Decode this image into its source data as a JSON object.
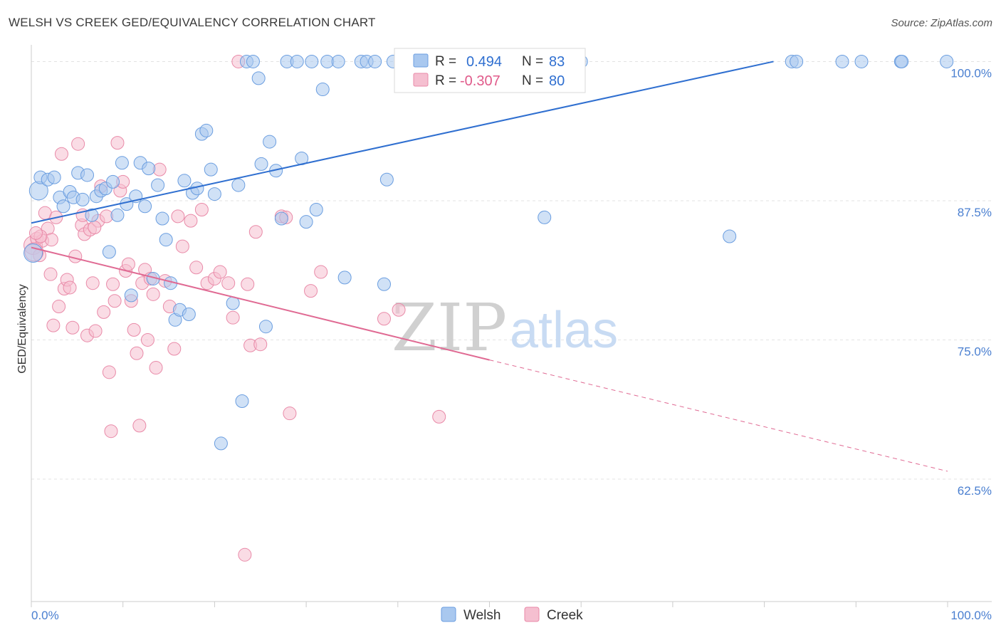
{
  "header": {
    "title": "WELSH VS CREEK GED/EQUIVALENCY CORRELATION CHART",
    "source": "Source: ZipAtlas.com"
  },
  "legend": {
    "r_label": "R =",
    "n_label": "N =",
    "welsh": {
      "r": "0.494",
      "n": "83"
    },
    "creek": {
      "r": "-0.307",
      "n": "80"
    }
  },
  "bottom_legend": {
    "welsh": "Welsh",
    "creek": "Creek"
  },
  "watermark": {
    "zip": "ZIP",
    "atlas": "atlas"
  },
  "colors": {
    "welsh_fill": "#a9c8ef",
    "welsh_stroke": "#6b9ee0",
    "welsh_line": "#2f6fd0",
    "creek_fill": "#f5bfd0",
    "creek_stroke": "#e98aa8",
    "creek_line": "#e06a93",
    "grid": "#e3e3e3",
    "tick_label": "#4a7fd0"
  },
  "chart_data": {
    "type": "scatter",
    "title": "WELSH VS CREEK GED/EQUIVALENCY CORRELATION CHART",
    "xlabel": "",
    "ylabel": "GED/Equivalency",
    "xlim": [
      0,
      100
    ],
    "ylim": [
      51.5,
      101.5
    ],
    "x_tick_labels": [
      "0.0%",
      "100.0%"
    ],
    "y_ticks": [
      62.5,
      75.0,
      87.5,
      100.0
    ],
    "y_tick_labels": [
      "62.5%",
      "75.0%",
      "87.5%",
      "100.0%"
    ],
    "grid": true,
    "legend_position": "top-center",
    "series": [
      {
        "name": "Welsh",
        "trend": {
          "x": [
            0,
            81
          ],
          "y": [
            85.5,
            100.0
          ],
          "style": "solid"
        },
        "points": [
          [
            0.8,
            88.4,
            2
          ],
          [
            1.0,
            89.6,
            1
          ],
          [
            1.8,
            89.4,
            1
          ],
          [
            2.5,
            89.6,
            1
          ],
          [
            3.1,
            87.8,
            1
          ],
          [
            3.5,
            87.0,
            1
          ],
          [
            4.2,
            88.3,
            1
          ],
          [
            4.6,
            87.8,
            1
          ],
          [
            5.1,
            90.0,
            1
          ],
          [
            5.6,
            87.6,
            1
          ],
          [
            6.1,
            89.8,
            1
          ],
          [
            6.6,
            86.2,
            1
          ],
          [
            7.1,
            87.9,
            1
          ],
          [
            7.6,
            88.4,
            1
          ],
          [
            8.1,
            88.6,
            1
          ],
          [
            8.5,
            82.9,
            1
          ],
          [
            8.9,
            89.2,
            1
          ],
          [
            9.4,
            86.2,
            1
          ],
          [
            9.9,
            90.9,
            1
          ],
          [
            10.4,
            87.2,
            1
          ],
          [
            10.9,
            79.0,
            1
          ],
          [
            11.4,
            87.9,
            1
          ],
          [
            11.9,
            90.9,
            1
          ],
          [
            12.4,
            87.0,
            1
          ],
          [
            12.8,
            90.4,
            1
          ],
          [
            13.3,
            80.5,
            1
          ],
          [
            13.8,
            88.9,
            1
          ],
          [
            14.3,
            85.9,
            1
          ],
          [
            14.7,
            84.0,
            1
          ],
          [
            15.2,
            80.1,
            1
          ],
          [
            15.7,
            76.8,
            1
          ],
          [
            16.2,
            77.7,
            1
          ],
          [
            16.7,
            89.3,
            1
          ],
          [
            17.2,
            77.3,
            1
          ],
          [
            17.6,
            88.2,
            1
          ],
          [
            18.1,
            88.6,
            1
          ],
          [
            18.6,
            93.5,
            1
          ],
          [
            19.1,
            93.8,
            1
          ],
          [
            19.6,
            90.3,
            1
          ],
          [
            20.0,
            88.1,
            1
          ],
          [
            20.7,
            65.7,
            1
          ],
          [
            22.0,
            78.3,
            1
          ],
          [
            22.6,
            88.9,
            1
          ],
          [
            23.0,
            69.5,
            1
          ],
          [
            23.5,
            100.0,
            1
          ],
          [
            24.2,
            100.0,
            1
          ],
          [
            24.8,
            98.5,
            1
          ],
          [
            25.1,
            90.8,
            1
          ],
          [
            25.6,
            76.2,
            1
          ],
          [
            26.0,
            92.8,
            1
          ],
          [
            26.7,
            90.2,
            1
          ],
          [
            27.3,
            85.9,
            1
          ],
          [
            27.9,
            100.0,
            1
          ],
          [
            29.0,
            100.0,
            1
          ],
          [
            29.5,
            91.3,
            1
          ],
          [
            30.0,
            85.6,
            1
          ],
          [
            30.6,
            100.0,
            1
          ],
          [
            31.1,
            86.7,
            1
          ],
          [
            31.8,
            97.5,
            1
          ],
          [
            32.3,
            100.0,
            1
          ],
          [
            33.5,
            100.0,
            1
          ],
          [
            34.2,
            80.6,
            1
          ],
          [
            36.0,
            100.0,
            1
          ],
          [
            36.6,
            100.0,
            1
          ],
          [
            37.5,
            100.0,
            1
          ],
          [
            38.5,
            80.0,
            1
          ],
          [
            38.8,
            89.4,
            1
          ],
          [
            39.5,
            100.0,
            1
          ],
          [
            42.0,
            100.0,
            1
          ],
          [
            44.0,
            100.0,
            1
          ],
          [
            47.0,
            100.0,
            1
          ],
          [
            53.0,
            100.0,
            1
          ],
          [
            56.0,
            86.0,
            1
          ],
          [
            60.0,
            100.0,
            1
          ],
          [
            76.2,
            84.3,
            1
          ],
          [
            83.0,
            100.0,
            1
          ],
          [
            83.5,
            100.0,
            1
          ],
          [
            88.5,
            100.0,
            1
          ],
          [
            90.6,
            100.0,
            1
          ],
          [
            94.9,
            100.0,
            1
          ],
          [
            95.0,
            100.0,
            1
          ],
          [
            99.9,
            100.0,
            1
          ],
          [
            0.2,
            82.8,
            2
          ]
        ]
      },
      {
        "name": "Creek",
        "trend": {
          "x": [
            0,
            50
          ],
          "y": [
            83.3,
            73.2
          ],
          "style": "solid",
          "dashed_extension": {
            "x": [
              50,
              100
            ],
            "y": [
              73.2,
              63.2
            ]
          }
        },
        "points": [
          [
            0.2,
            83.5,
            2
          ],
          [
            0.6,
            84.1,
            1
          ],
          [
            0.9,
            82.6,
            1
          ],
          [
            1.2,
            83.9,
            1
          ],
          [
            1.5,
            86.4,
            1
          ],
          [
            1.8,
            85.0,
            1
          ],
          [
            2.1,
            80.9,
            1
          ],
          [
            2.4,
            76.3,
            1
          ],
          [
            2.7,
            86.0,
            1
          ],
          [
            3.0,
            78.0,
            1
          ],
          [
            3.3,
            91.7,
            1
          ],
          [
            3.6,
            79.6,
            1
          ],
          [
            3.9,
            80.4,
            1
          ],
          [
            4.2,
            79.7,
            1
          ],
          [
            4.5,
            76.1,
            1
          ],
          [
            4.8,
            82.5,
            1
          ],
          [
            5.1,
            92.6,
            1
          ],
          [
            5.5,
            85.3,
            1
          ],
          [
            5.8,
            84.5,
            1
          ],
          [
            6.1,
            75.4,
            1
          ],
          [
            6.4,
            84.9,
            1
          ],
          [
            6.7,
            80.1,
            1
          ],
          [
            7.0,
            75.8,
            1
          ],
          [
            7.3,
            85.7,
            1
          ],
          [
            7.6,
            88.8,
            1
          ],
          [
            7.9,
            77.5,
            1
          ],
          [
            8.2,
            86.1,
            1
          ],
          [
            8.5,
            72.1,
            1
          ],
          [
            8.7,
            66.8,
            1
          ],
          [
            8.9,
            80.0,
            1
          ],
          [
            9.1,
            78.5,
            1
          ],
          [
            9.4,
            92.7,
            1
          ],
          [
            9.7,
            88.4,
            1
          ],
          [
            10.0,
            89.2,
            1
          ],
          [
            10.3,
            81.2,
            1
          ],
          [
            10.6,
            81.8,
            1
          ],
          [
            10.9,
            78.5,
            1
          ],
          [
            11.2,
            75.9,
            1
          ],
          [
            11.5,
            73.8,
            1
          ],
          [
            11.8,
            67.3,
            1
          ],
          [
            12.1,
            80.1,
            1
          ],
          [
            12.4,
            81.3,
            1
          ],
          [
            12.7,
            75.0,
            1
          ],
          [
            13.0,
            80.5,
            1
          ],
          [
            13.3,
            79.1,
            1
          ],
          [
            13.6,
            72.5,
            1
          ],
          [
            14.0,
            90.3,
            1
          ],
          [
            14.6,
            80.3,
            1
          ],
          [
            15.1,
            78.0,
            1
          ],
          [
            15.6,
            74.2,
            1
          ],
          [
            16.0,
            86.1,
            1
          ],
          [
            16.5,
            83.4,
            1
          ],
          [
            17.4,
            85.7,
            1
          ],
          [
            18.0,
            81.5,
            1
          ],
          [
            18.6,
            86.7,
            1
          ],
          [
            19.2,
            80.1,
            1
          ],
          [
            20.0,
            80.5,
            1
          ],
          [
            20.6,
            81.1,
            1
          ],
          [
            21.5,
            80.1,
            1
          ],
          [
            22.0,
            77.0,
            1
          ],
          [
            22.6,
            100.0,
            1
          ],
          [
            23.3,
            55.7,
            1
          ],
          [
            23.6,
            80.0,
            1
          ],
          [
            23.9,
            74.5,
            1
          ],
          [
            24.5,
            84.7,
            1
          ],
          [
            25.0,
            74.6,
            1
          ],
          [
            27.3,
            86.1,
            1
          ],
          [
            27.8,
            86.0,
            1
          ],
          [
            28.2,
            68.4,
            1
          ],
          [
            30.5,
            79.4,
            1
          ],
          [
            31.6,
            81.1,
            1
          ],
          [
            38.5,
            76.9,
            1
          ],
          [
            40.1,
            77.7,
            1
          ],
          [
            44.5,
            68.1,
            1
          ],
          [
            5.6,
            86.2,
            1
          ],
          [
            6.9,
            85.1,
            1
          ],
          [
            2.2,
            84.0,
            1
          ],
          [
            1.0,
            84.3,
            1
          ],
          [
            0.5,
            84.6,
            1
          ],
          [
            0.3,
            82.9,
            2
          ]
        ]
      }
    ]
  }
}
